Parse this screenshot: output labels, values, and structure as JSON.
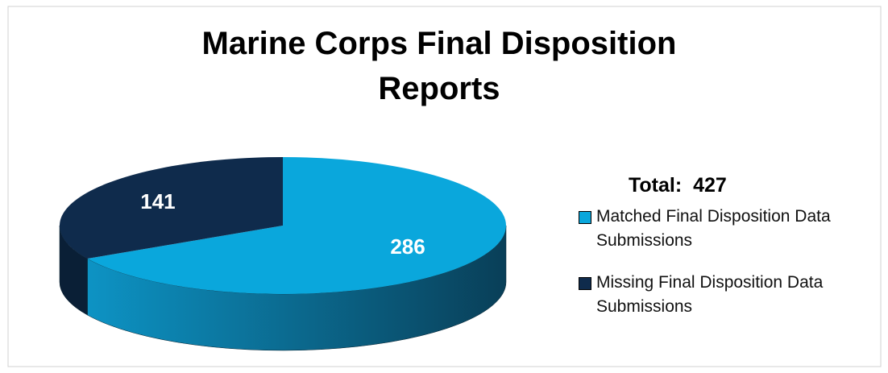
{
  "chart_data": {
    "type": "pie",
    "title": "Marine Corps Final Disposition Reports",
    "annotation": "Total:  427",
    "categories": [
      "Matched Final Disposition Data Submissions",
      "Missing Final Disposition Data Submissions"
    ],
    "values": [
      286,
      141
    ],
    "colors": [
      "#0aa7dc",
      "#0f2b4c"
    ],
    "legend": "right"
  }
}
